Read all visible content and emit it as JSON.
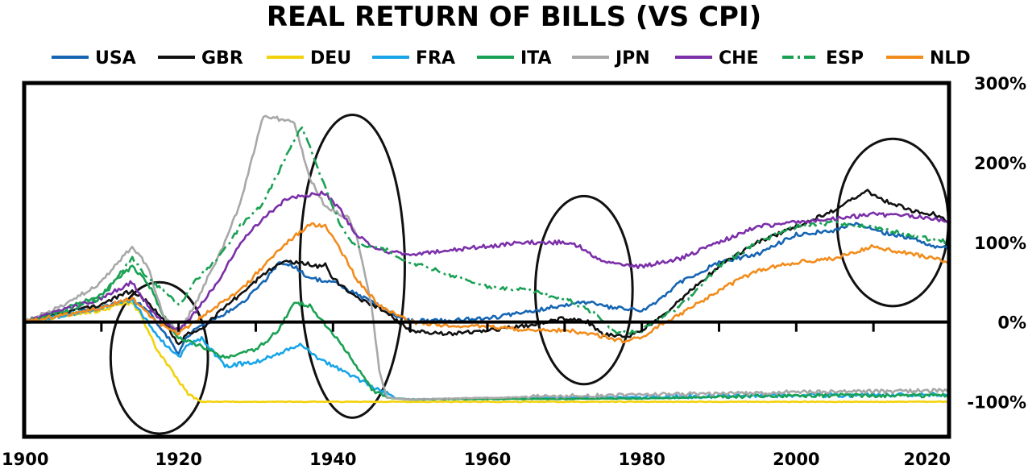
{
  "chart_data": {
    "type": "line",
    "title": "REAL RETURN OF BILLS (VS CPI)",
    "xlabel": "",
    "ylabel": "",
    "xlim": [
      1900,
      2020
    ],
    "ylim": [
      -150,
      300
    ],
    "x_ticks": [
      "1900",
      "1920",
      "1940",
      "1960",
      "1980",
      "2000",
      "2020"
    ],
    "y_ticks": [
      "300%",
      "200%",
      "100%",
      "0%",
      "-100%"
    ],
    "y_tick_values": [
      300,
      200,
      100,
      0,
      -100
    ],
    "x_tick_values": [
      1900,
      1920,
      1940,
      1960,
      1980,
      2000,
      2020
    ],
    "legend_position": "top",
    "grid": false,
    "series": [
      {
        "name": "USA",
        "color": "#1565b3",
        "dash": "",
        "points": [
          [
            1900,
            0
          ],
          [
            1905,
            10
          ],
          [
            1910,
            18
          ],
          [
            1914,
            28
          ],
          [
            1916,
            15
          ],
          [
            1918,
            -10
          ],
          [
            1920,
            -40
          ],
          [
            1921,
            -20
          ],
          [
            1922,
            -10
          ],
          [
            1925,
            5
          ],
          [
            1928,
            22
          ],
          [
            1931,
            50
          ],
          [
            1933,
            75
          ],
          [
            1935,
            70
          ],
          [
            1937,
            55
          ],
          [
            1940,
            50
          ],
          [
            1943,
            35
          ],
          [
            1946,
            20
          ],
          [
            1948,
            8
          ],
          [
            1950,
            2
          ],
          [
            1955,
            2
          ],
          [
            1960,
            5
          ],
          [
            1965,
            12
          ],
          [
            1970,
            22
          ],
          [
            1973,
            25
          ],
          [
            1976,
            18
          ],
          [
            1978,
            16
          ],
          [
            1980,
            15
          ],
          [
            1982,
            25
          ],
          [
            1985,
            50
          ],
          [
            1990,
            75
          ],
          [
            1995,
            85
          ],
          [
            2000,
            110
          ],
          [
            2005,
            115
          ],
          [
            2008,
            125
          ],
          [
            2010,
            115
          ],
          [
            2015,
            105
          ],
          [
            2018,
            95
          ],
          [
            2020,
            95
          ]
        ]
      },
      {
        "name": "GBR",
        "color": "#111111",
        "dash": "",
        "points": [
          [
            1900,
            0
          ],
          [
            1905,
            12
          ],
          [
            1910,
            22
          ],
          [
            1914,
            40
          ],
          [
            1916,
            25
          ],
          [
            1918,
            5
          ],
          [
            1920,
            -30
          ],
          [
            1921,
            -15
          ],
          [
            1923,
            -8
          ],
          [
            1925,
            10
          ],
          [
            1928,
            35
          ],
          [
            1931,
            60
          ],
          [
            1933,
            75
          ],
          [
            1936,
            75
          ],
          [
            1938,
            70
          ],
          [
            1939,
            72
          ],
          [
            1940,
            55
          ],
          [
            1943,
            30
          ],
          [
            1946,
            18
          ],
          [
            1948,
            5
          ],
          [
            1950,
            -10
          ],
          [
            1955,
            -15
          ],
          [
            1960,
            -10
          ],
          [
            1965,
            -5
          ],
          [
            1970,
            5
          ],
          [
            1973,
            0
          ],
          [
            1975,
            -15
          ],
          [
            1978,
            -20
          ],
          [
            1980,
            -10
          ],
          [
            1983,
            10
          ],
          [
            1987,
            45
          ],
          [
            1990,
            70
          ],
          [
            1995,
            100
          ],
          [
            2000,
            120
          ],
          [
            2005,
            140
          ],
          [
            2009,
            165
          ],
          [
            2012,
            150
          ],
          [
            2015,
            140
          ],
          [
            2018,
            135
          ],
          [
            2020,
            125
          ]
        ]
      },
      {
        "name": "DEU",
        "color": "#f2d20c",
        "dash": "",
        "points": [
          [
            1900,
            0
          ],
          [
            1905,
            8
          ],
          [
            1910,
            15
          ],
          [
            1914,
            25
          ],
          [
            1915,
            10
          ],
          [
            1917,
            -30
          ],
          [
            1919,
            -60
          ],
          [
            1921,
            -88
          ],
          [
            1923,
            -100
          ],
          [
            1930,
            -100
          ],
          [
            1950,
            -100
          ],
          [
            1980,
            -100
          ],
          [
            2000,
            -100
          ],
          [
            2020,
            -100
          ]
        ]
      },
      {
        "name": "FRA",
        "color": "#18a5e8",
        "dash": "",
        "points": [
          [
            1900,
            0
          ],
          [
            1905,
            8
          ],
          [
            1910,
            18
          ],
          [
            1914,
            28
          ],
          [
            1916,
            0
          ],
          [
            1918,
            -25
          ],
          [
            1920,
            -45
          ],
          [
            1921,
            -30
          ],
          [
            1923,
            -20
          ],
          [
            1926,
            -55
          ],
          [
            1930,
            -50
          ],
          [
            1934,
            -35
          ],
          [
            1936,
            -28
          ],
          [
            1938,
            -45
          ],
          [
            1940,
            -55
          ],
          [
            1943,
            -70
          ],
          [
            1946,
            -85
          ],
          [
            1948,
            -95
          ],
          [
            1950,
            -97
          ],
          [
            1970,
            -95
          ],
          [
            2000,
            -92
          ],
          [
            2020,
            -91
          ]
        ]
      },
      {
        "name": "ITA",
        "color": "#1aa154",
        "dash": "",
        "points": [
          [
            1900,
            0
          ],
          [
            1905,
            15
          ],
          [
            1910,
            35
          ],
          [
            1914,
            70
          ],
          [
            1916,
            50
          ],
          [
            1918,
            10
          ],
          [
            1920,
            -20
          ],
          [
            1923,
            -30
          ],
          [
            1926,
            -45
          ],
          [
            1930,
            -35
          ],
          [
            1933,
            -10
          ],
          [
            1935,
            25
          ],
          [
            1937,
            20
          ],
          [
            1940,
            -15
          ],
          [
            1942,
            -40
          ],
          [
            1945,
            -85
          ],
          [
            1947,
            -95
          ],
          [
            1950,
            -97
          ],
          [
            1980,
            -96
          ],
          [
            2000,
            -92
          ],
          [
            2020,
            -92
          ]
        ]
      },
      {
        "name": "JPN",
        "color": "#a8a8a8",
        "dash": "",
        "points": [
          [
            1900,
            0
          ],
          [
            1905,
            20
          ],
          [
            1910,
            50
          ],
          [
            1914,
            95
          ],
          [
            1916,
            70
          ],
          [
            1918,
            10
          ],
          [
            1920,
            -15
          ],
          [
            1922,
            20
          ],
          [
            1924,
            60
          ],
          [
            1926,
            100
          ],
          [
            1928,
            150
          ],
          [
            1931,
            260
          ],
          [
            1933,
            255
          ],
          [
            1935,
            250
          ],
          [
            1937,
            180
          ],
          [
            1939,
            145
          ],
          [
            1942,
            130
          ],
          [
            1943,
            110
          ],
          [
            1945,
            20
          ],
          [
            1946,
            -60
          ],
          [
            1947,
            -95
          ],
          [
            1950,
            -97
          ],
          [
            1970,
            -93
          ],
          [
            2000,
            -88
          ],
          [
            2020,
            -86
          ]
        ]
      },
      {
        "name": "CHE",
        "color": "#7b2fa8",
        "dash": "",
        "points": [
          [
            1900,
            0
          ],
          [
            1905,
            15
          ],
          [
            1910,
            30
          ],
          [
            1914,
            50
          ],
          [
            1916,
            20
          ],
          [
            1918,
            0
          ],
          [
            1920,
            -10
          ],
          [
            1922,
            10
          ],
          [
            1925,
            50
          ],
          [
            1928,
            100
          ],
          [
            1931,
            130
          ],
          [
            1934,
            155
          ],
          [
            1937,
            160
          ],
          [
            1939,
            162
          ],
          [
            1941,
            140
          ],
          [
            1943,
            110
          ],
          [
            1946,
            90
          ],
          [
            1950,
            85
          ],
          [
            1955,
            90
          ],
          [
            1960,
            95
          ],
          [
            1965,
            100
          ],
          [
            1970,
            100
          ],
          [
            1972,
            95
          ],
          [
            1975,
            75
          ],
          [
            1978,
            70
          ],
          [
            1980,
            70
          ],
          [
            1985,
            80
          ],
          [
            1990,
            100
          ],
          [
            1995,
            120
          ],
          [
            2000,
            125
          ],
          [
            2005,
            130
          ],
          [
            2010,
            135
          ],
          [
            2015,
            133
          ],
          [
            2020,
            125
          ]
        ]
      },
      {
        "name": "ESP",
        "color": "#1aa154",
        "dash": "14,5,3,5",
        "points": [
          [
            1900,
            0
          ],
          [
            1905,
            12
          ],
          [
            1910,
            30
          ],
          [
            1914,
            80
          ],
          [
            1916,
            55
          ],
          [
            1918,
            40
          ],
          [
            1920,
            20
          ],
          [
            1922,
            50
          ],
          [
            1925,
            80
          ],
          [
            1928,
            120
          ],
          [
            1931,
            150
          ],
          [
            1934,
            210
          ],
          [
            1936,
            245
          ],
          [
            1939,
            170
          ],
          [
            1941,
            120
          ],
          [
            1943,
            95
          ],
          [
            1946,
            95
          ],
          [
            1948,
            85
          ],
          [
            1950,
            75
          ],
          [
            1955,
            60
          ],
          [
            1960,
            45
          ],
          [
            1965,
            40
          ],
          [
            1970,
            30
          ],
          [
            1974,
            10
          ],
          [
            1977,
            -15
          ],
          [
            1980,
            -10
          ],
          [
            1985,
            20
          ],
          [
            1990,
            70
          ],
          [
            1995,
            100
          ],
          [
            2000,
            120
          ],
          [
            2005,
            125
          ],
          [
            2010,
            120
          ],
          [
            2015,
            108
          ],
          [
            2020,
            100
          ]
        ]
      },
      {
        "name": "NLD",
        "color": "#f28c1c",
        "dash": "",
        "points": [
          [
            1900,
            0
          ],
          [
            1905,
            8
          ],
          [
            1910,
            18
          ],
          [
            1914,
            30
          ],
          [
            1916,
            10
          ],
          [
            1918,
            -5
          ],
          [
            1920,
            -15
          ],
          [
            1922,
            0
          ],
          [
            1925,
            20
          ],
          [
            1928,
            40
          ],
          [
            1931,
            70
          ],
          [
            1934,
            100
          ],
          [
            1937,
            122
          ],
          [
            1939,
            120
          ],
          [
            1941,
            90
          ],
          [
            1943,
            55
          ],
          [
            1946,
            20
          ],
          [
            1948,
            10
          ],
          [
            1950,
            0
          ],
          [
            1955,
            -5
          ],
          [
            1960,
            -5
          ],
          [
            1965,
            -10
          ],
          [
            1970,
            -10
          ],
          [
            1975,
            -18
          ],
          [
            1978,
            -25
          ],
          [
            1980,
            -18
          ],
          [
            1985,
            10
          ],
          [
            1990,
            40
          ],
          [
            1995,
            65
          ],
          [
            2000,
            75
          ],
          [
            2005,
            80
          ],
          [
            2010,
            95
          ],
          [
            2015,
            85
          ],
          [
            2018,
            80
          ],
          [
            2020,
            72
          ]
        ]
      }
    ],
    "annotations": [
      {
        "type": "ellipse",
        "cx": 1917.5,
        "cy": -45,
        "rx": 6.3,
        "ry": 95
      },
      {
        "type": "ellipse",
        "cx": 1942.5,
        "cy": 70,
        "rx": 6.8,
        "ry": 190
      },
      {
        "type": "ellipse",
        "cx": 1972.5,
        "cy": 40,
        "rx": 6.3,
        "ry": 118
      },
      {
        "type": "ellipse",
        "cx": 2012.5,
        "cy": 125,
        "rx": 7.2,
        "ry": 105
      }
    ]
  }
}
